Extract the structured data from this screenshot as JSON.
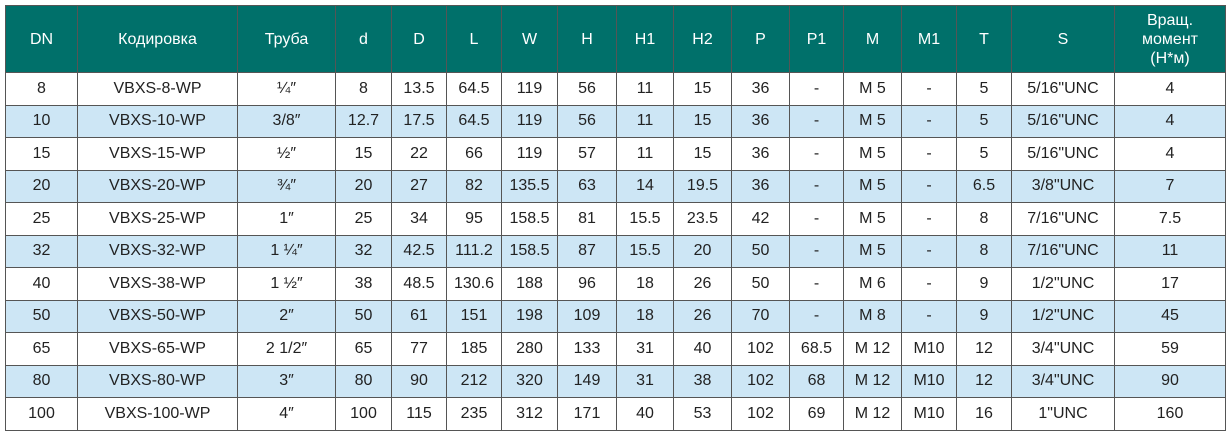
{
  "colors": {
    "header_bg": "#00706a",
    "header_text": "#ffffff",
    "stripe": "#cde6f5"
  },
  "headers": [
    "DN",
    "Кодировка",
    "Труба",
    "d",
    "D",
    "L",
    "W",
    "H",
    "H1",
    "H2",
    "P",
    "P1",
    "M",
    "M1",
    "T",
    "S",
    "Вращ. момент (Н*м)"
  ],
  "rows": [
    [
      "8",
      "VBXS-8-WP",
      "¼″",
      "8",
      "13.5",
      "64.5",
      "119",
      "56",
      "11",
      "15",
      "36",
      "-",
      "M 5",
      "-",
      "5",
      "5/16\"UNC",
      "4"
    ],
    [
      "10",
      "VBXS-10-WP",
      "3/8″",
      "12.7",
      "17.5",
      "64.5",
      "119",
      "56",
      "11",
      "15",
      "36",
      "-",
      "M 5",
      "-",
      "5",
      "5/16\"UNC",
      "4"
    ],
    [
      "15",
      "VBXS-15-WP",
      "½″",
      "15",
      "22",
      "66",
      "119",
      "57",
      "11",
      "15",
      "36",
      "-",
      "M 5",
      "-",
      "5",
      "5/16\"UNC",
      "4"
    ],
    [
      "20",
      "VBXS-20-WP",
      "¾″",
      "20",
      "27",
      "82",
      "135.5",
      "63",
      "14",
      "19.5",
      "36",
      "-",
      "M 5",
      "-",
      "6.5",
      "3/8\"UNC",
      "7"
    ],
    [
      "25",
      "VBXS-25-WP",
      "1″",
      "25",
      "34",
      "95",
      "158.5",
      "81",
      "15.5",
      "23.5",
      "42",
      "-",
      "M 5",
      "-",
      "8",
      "7/16\"UNC",
      "7.5"
    ],
    [
      "32",
      "VBXS-32-WP",
      "1 ¼″",
      "32",
      "42.5",
      "111.2",
      "158.5",
      "87",
      "15.5",
      "20",
      "50",
      "-",
      "M 5",
      "-",
      "8",
      "7/16\"UNC",
      "11"
    ],
    [
      "40",
      "VBXS-38-WP",
      "1 ½″",
      "38",
      "48.5",
      "130.6",
      "188",
      "96",
      "18",
      "26",
      "50",
      "-",
      "M 6",
      "-",
      "9",
      "1/2\"UNC",
      "17"
    ],
    [
      "50",
      "VBXS-50-WP",
      "2″",
      "50",
      "61",
      "151",
      "198",
      "109",
      "18",
      "26",
      "70",
      "-",
      "M 8",
      "-",
      "9",
      "1/2\"UNC",
      "45"
    ],
    [
      "65",
      "VBXS-65-WP",
      "2 1/2″",
      "65",
      "77",
      "185",
      "280",
      "133",
      "31",
      "40",
      "102",
      "68.5",
      "M 12",
      "M10",
      "12",
      "3/4\"UNC",
      "59"
    ],
    [
      "80",
      "VBXS-80-WP",
      "3″",
      "80",
      "90",
      "212",
      "320",
      "149",
      "31",
      "38",
      "102",
      "68",
      "M 12",
      "M10",
      "12",
      "3/4\"UNC",
      "90"
    ],
    [
      "100",
      "VBXS-100-WP",
      "4″",
      "100",
      "115",
      "235",
      "312",
      "171",
      "40",
      "53",
      "102",
      "69",
      "M 12",
      "M10",
      "16",
      "1\"UNC",
      "160"
    ]
  ]
}
